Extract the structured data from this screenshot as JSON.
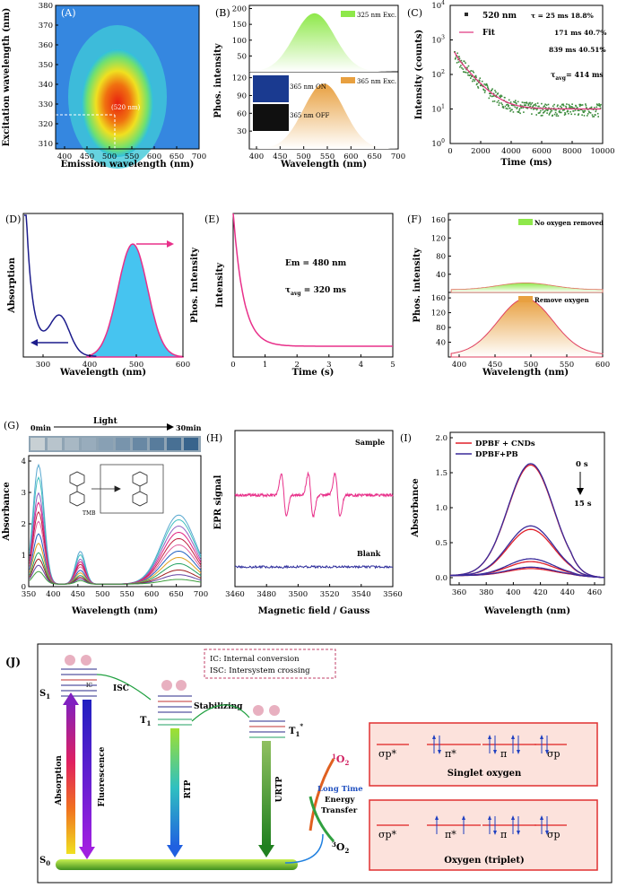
{
  "colors": {
    "pink": "#e8308a",
    "blue": "#1c1c8c",
    "cyan": "#3cc4f0",
    "green": "#5a9a3a",
    "red": "#e0202a",
    "navy": "#3a2a9a"
  },
  "panels": {
    "A": {
      "label": "(A)",
      "xlabel": "Emission wavelength (nm)",
      "ylabel": "Excitation wavelength (nm)",
      "annotation": "(520 nm)",
      "xticks": [
        "400",
        "450",
        "500",
        "550",
        "600",
        "650",
        "700"
      ],
      "yticks": [
        "310",
        "320",
        "330",
        "340",
        "350",
        "360",
        "370",
        "380"
      ]
    },
    "B": {
      "label": "(B)",
      "xlabel": "Wavelength (nm)",
      "ylabel": "Phos. intensity",
      "legend_top": "325 nm Exc.",
      "legend_bottom": "365 nm Exc.",
      "inset_on": "365 nm ON",
      "inset_off": "365 nm OFF",
      "xticks": [
        "400",
        "450",
        "500",
        "550",
        "600",
        "650",
        "700"
      ],
      "yticks_top": [
        "50",
        "100",
        "150",
        "200"
      ],
      "yticks_bottom": [
        "30",
        "60",
        "90",
        "120"
      ]
    },
    "C": {
      "label": "(C)",
      "xlabel": "Time (ms)",
      "ylabel": "Intensity (counts)",
      "legend_data": "520 nm",
      "legend_fit": "Fit",
      "tau1": "τ = 25 ms 18.8%",
      "tau2": "171 ms 40.7%",
      "tau3": "839 ms 40.51%",
      "tau_avg": "τ",
      "tau_avg_sub": "avg",
      "tau_avg_val": "= 414 ms",
      "xticks": [
        "0",
        "2000",
        "4000",
        "6000",
        "8000",
        "10000"
      ],
      "yticks": [
        "10",
        "10",
        "10",
        "10",
        "10"
      ],
      "yexp": [
        "0",
        "1",
        "2",
        "3",
        "4"
      ]
    },
    "D": {
      "label": "(D)",
      "xlabel": "Wavelength (nm)",
      "ylabel_left": "Absorption",
      "ylabel_right": "Phos. Intensity",
      "xticks": [
        "300",
        "400",
        "500",
        "600"
      ]
    },
    "E": {
      "label": "(E)",
      "xlabel": "Time (s)",
      "ylabel": "Intensity",
      "em": "Em = 480 nm",
      "tau": "τ",
      "tau_sub": "avg",
      "tau_val": " = 320 ms",
      "xticks": [
        "0",
        "1",
        "2",
        "3",
        "4",
        "5"
      ]
    },
    "F": {
      "label": "(F)",
      "xlabel": "Wavelength (nm)",
      "ylabel": "Phos. intensity",
      "legend_top": "No oxygen removed",
      "legend_bottom": "Remove oxygen",
      "xticks": [
        "400",
        "450",
        "500",
        "550",
        "600"
      ],
      "yticks_top": [
        "40",
        "80",
        "120",
        "160"
      ],
      "yticks_bottom": [
        "40",
        "80",
        "120",
        "160"
      ]
    },
    "G": {
      "label": "(G)",
      "xlabel": "Wavelength (nm)",
      "ylabel": "Absorbance",
      "time_start": "0min",
      "light": "Light",
      "time_end": "30min",
      "tmb": "TMB",
      "xticks": [
        "350",
        "400",
        "450",
        "500",
        "550",
        "600",
        "650",
        "700"
      ],
      "yticks": [
        "0",
        "1",
        "2",
        "3",
        "4"
      ]
    },
    "H": {
      "label": "(H)",
      "xlabel": "Magnetic field / Gauss",
      "ylabel": "EPR signal",
      "sample": "Sample",
      "blank": "Blank",
      "xticks": [
        "3460",
        "3480",
        "3500",
        "3520",
        "3540",
        "3560"
      ]
    },
    "I": {
      "label": "(I)",
      "xlabel": "Wavelength (nm)",
      "ylabel": "Absorbance",
      "legend1": "DPBF + CNDs",
      "legend2": "DPBF+PB",
      "t0": "0 s",
      "t1": "15 s",
      "xticks": [
        "360",
        "380",
        "400",
        "420",
        "440",
        "460"
      ],
      "yticks": [
        "0.0",
        "0.5",
        "1.0",
        "1.5",
        "2.0"
      ]
    },
    "J": {
      "label": "(J)",
      "ic": "IC: Internal conversion",
      "isc_def": "ISC: Intersystem crossing",
      "s1": "S",
      "s1_sub": "1",
      "s0": "S",
      "s0_sub": "0",
      "t1": "T",
      "t1_sub": "1",
      "t1s": "T",
      "t1s_sub": "1",
      "t1s_sup": "*",
      "isc": "ISC",
      "ic_small": "IC",
      "stab": "Stabilizing",
      "absorption": "Absorption",
      "fluor": "Fluorescence",
      "rtp": "RTP",
      "urtp": "URTP",
      "o2_1": "O",
      "o2_1_sup": "1",
      "o2_1_sub": "2",
      "o2_3": "O",
      "o2_3_sup": "3",
      "o2_3_sub": "2",
      "long": "Long Time",
      "energy": "Energy",
      "transfer": "Transfer",
      "singlet": "Singlet oxygen",
      "triplet": "Oxygen (triplet)",
      "sp_star": "σp*",
      "pi_star": "π*",
      "pi": "π",
      "sp": "σp"
    }
  },
  "chart_data": [
    {
      "panel": "A",
      "type": "heatmap",
      "x_range": [
        380,
        700
      ],
      "y_range": [
        305,
        380
      ],
      "peak": {
        "x": 520,
        "y": 325
      }
    },
    {
      "panel": "B",
      "type": "area",
      "x_range": [
        380,
        700
      ],
      "series": [
        {
          "name": "325 nm Exc.",
          "peak_x": 520,
          "peak_y": 185,
          "ylim": [
            0,
            210
          ]
        },
        {
          "name": "365 nm Exc.",
          "peak_x": 540,
          "peak_y": 110,
          "ylim": [
            0,
            130
          ]
        }
      ]
    },
    {
      "panel": "C",
      "type": "scatter",
      "x_range": [
        0,
        10000
      ],
      "y_scale": "log",
      "y_range": [
        1,
        10000
      ],
      "series": [
        {
          "name": "520 nm",
          "start": 6000,
          "plateau": 10
        },
        {
          "name": "Fit"
        }
      ]
    },
    {
      "panel": "D",
      "type": "line",
      "x_range": [
        250,
        600
      ],
      "emission_peak": 490
    },
    {
      "panel": "E",
      "type": "line",
      "x_range": [
        0,
        5
      ],
      "tau_s": 0.32
    },
    {
      "panel": "F",
      "type": "area",
      "x_range": [
        380,
        600
      ],
      "series": [
        {
          "name": "No oxygen removed",
          "peak_x": 490,
          "peak_y": 15,
          "ylim": [
            0,
            170
          ]
        },
        {
          "name": "Remove oxygen",
          "peak_x": 490,
          "peak_y": 152,
          "ylim": [
            0,
            170
          ]
        }
      ]
    },
    {
      "panel": "G",
      "type": "line",
      "x_range": [
        350,
        700
      ],
      "ylim": [
        0,
        4
      ],
      "series_peak_370": [
        3.8,
        3.4,
        2.9,
        2.6,
        2.3,
        2.0,
        1.6,
        1.3,
        1.0,
        0.8,
        0.6,
        0.4
      ],
      "series_peak_650": [
        2.2,
        2.05,
        1.85,
        1.65,
        1.45,
        1.25,
        1.05,
        0.85,
        0.65,
        0.45,
        0.3,
        0.15
      ]
    },
    {
      "panel": "H",
      "type": "line",
      "x_range": [
        3460,
        3560
      ],
      "peaks": [
        3491,
        3508,
        3525
      ]
    },
    {
      "panel": "I",
      "type": "line",
      "x_range": [
        350,
        465
      ],
      "ylim": [
        0,
        2.1
      ],
      "series": [
        {
          "name": "DPBF + CNDs",
          "peaks": [
            1.58,
            0.66,
            0.2,
            0.1
          ]
        },
        {
          "name": "DPBF+PB",
          "peaks": [
            1.6,
            0.71,
            0.24,
            0.12
          ]
        }
      ]
    }
  ]
}
